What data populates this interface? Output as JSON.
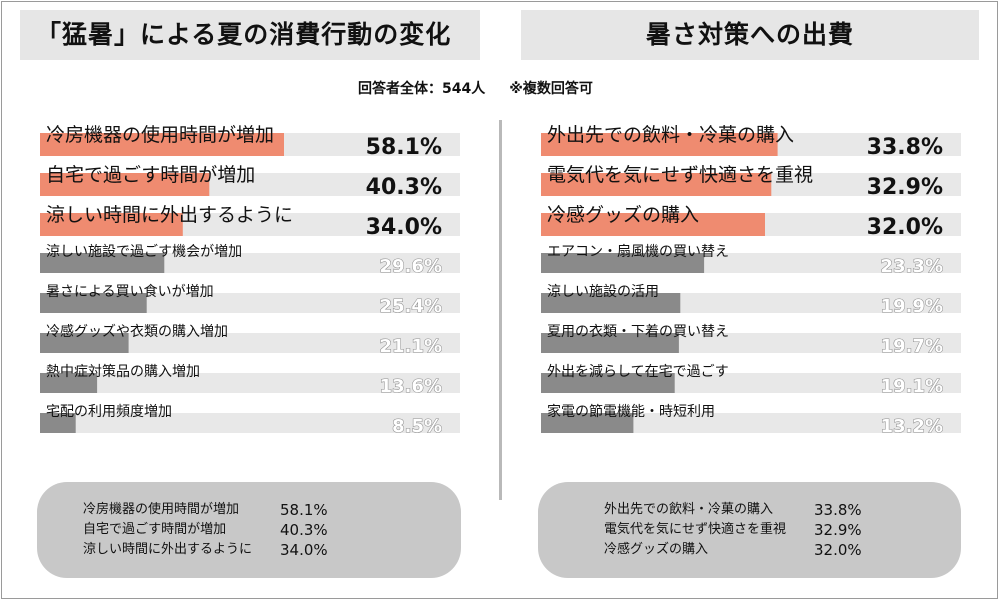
{
  "left_title": "「猛暑」による夏の消費行動の変化",
  "right_title": "暑さ対策への出費",
  "respondents": "回答者全体：544人",
  "multiple_answers_note": "※複数回答可",
  "colors": {
    "highlight": "#ef8b70",
    "other": "#8a8a8a",
    "track": "#e8e8e8",
    "summary_bg": "#c8c8c8"
  },
  "chart_data": [
    {
      "type": "bar",
      "title": "「猛暑」による夏の消費行動の変化",
      "orientation": "horizontal",
      "xlim": [
        0,
        100
      ],
      "categories": [
        "冷房機器の使用時間が増加",
        "自宅で過ごす時間が増加",
        "涼しい時間に外出するように",
        "涼しい施設で過ごす機会が増加",
        "暑さによる買い食いが増加",
        "冷感グッズや衣類の購入増加",
        "熱中症対策品の購入増加",
        "宅配の利用頻度増加"
      ],
      "values": [
        58.1,
        40.3,
        34.0,
        29.6,
        25.4,
        21.1,
        13.6,
        8.5
      ],
      "value_labels": [
        "58.1%",
        "40.3%",
        "34.0%",
        "29.6%",
        "25.4%",
        "21.1%",
        "13.6%",
        "8.5%"
      ],
      "highlighted_top": 3
    },
    {
      "type": "bar",
      "title": "暑さ対策への出費",
      "orientation": "horizontal",
      "xlim": [
        0,
        60
      ],
      "categories": [
        "外出先での飲料・冷菓の購入",
        "電気代を気にせず快適さを重視",
        "冷感グッズの購入",
        "エアコン・扇風機の買い替え",
        "涼しい施設の活用",
        "夏用の衣類・下着の買い替え",
        "外出を減らして在宅で過ごす",
        "家電の節電機能・時短利用"
      ],
      "values": [
        33.8,
        32.9,
        32.0,
        23.3,
        19.9,
        19.7,
        19.1,
        13.2
      ],
      "value_labels": [
        "33.8%",
        "32.9%",
        "32.0%",
        "23.3%",
        "19.9%",
        "19.7%",
        "19.1%",
        "13.2%"
      ],
      "highlighted_top": 3
    }
  ],
  "summary_left": [
    {
      "label": "冷房機器の使用時間が増加",
      "value": "58.1%"
    },
    {
      "label": "自宅で過ごす時間が増加",
      "value": "40.3%"
    },
    {
      "label": "涼しい時間に外出するように",
      "value": "34.0%"
    }
  ],
  "summary_right": [
    {
      "label": "外出先での飲料・冷菓の購入",
      "value": "33.8%"
    },
    {
      "label": "電気代を気にせず快適さを重視",
      "value": "32.9%"
    },
    {
      "label": "冷感グッズの購入",
      "value": "32.0%"
    }
  ]
}
